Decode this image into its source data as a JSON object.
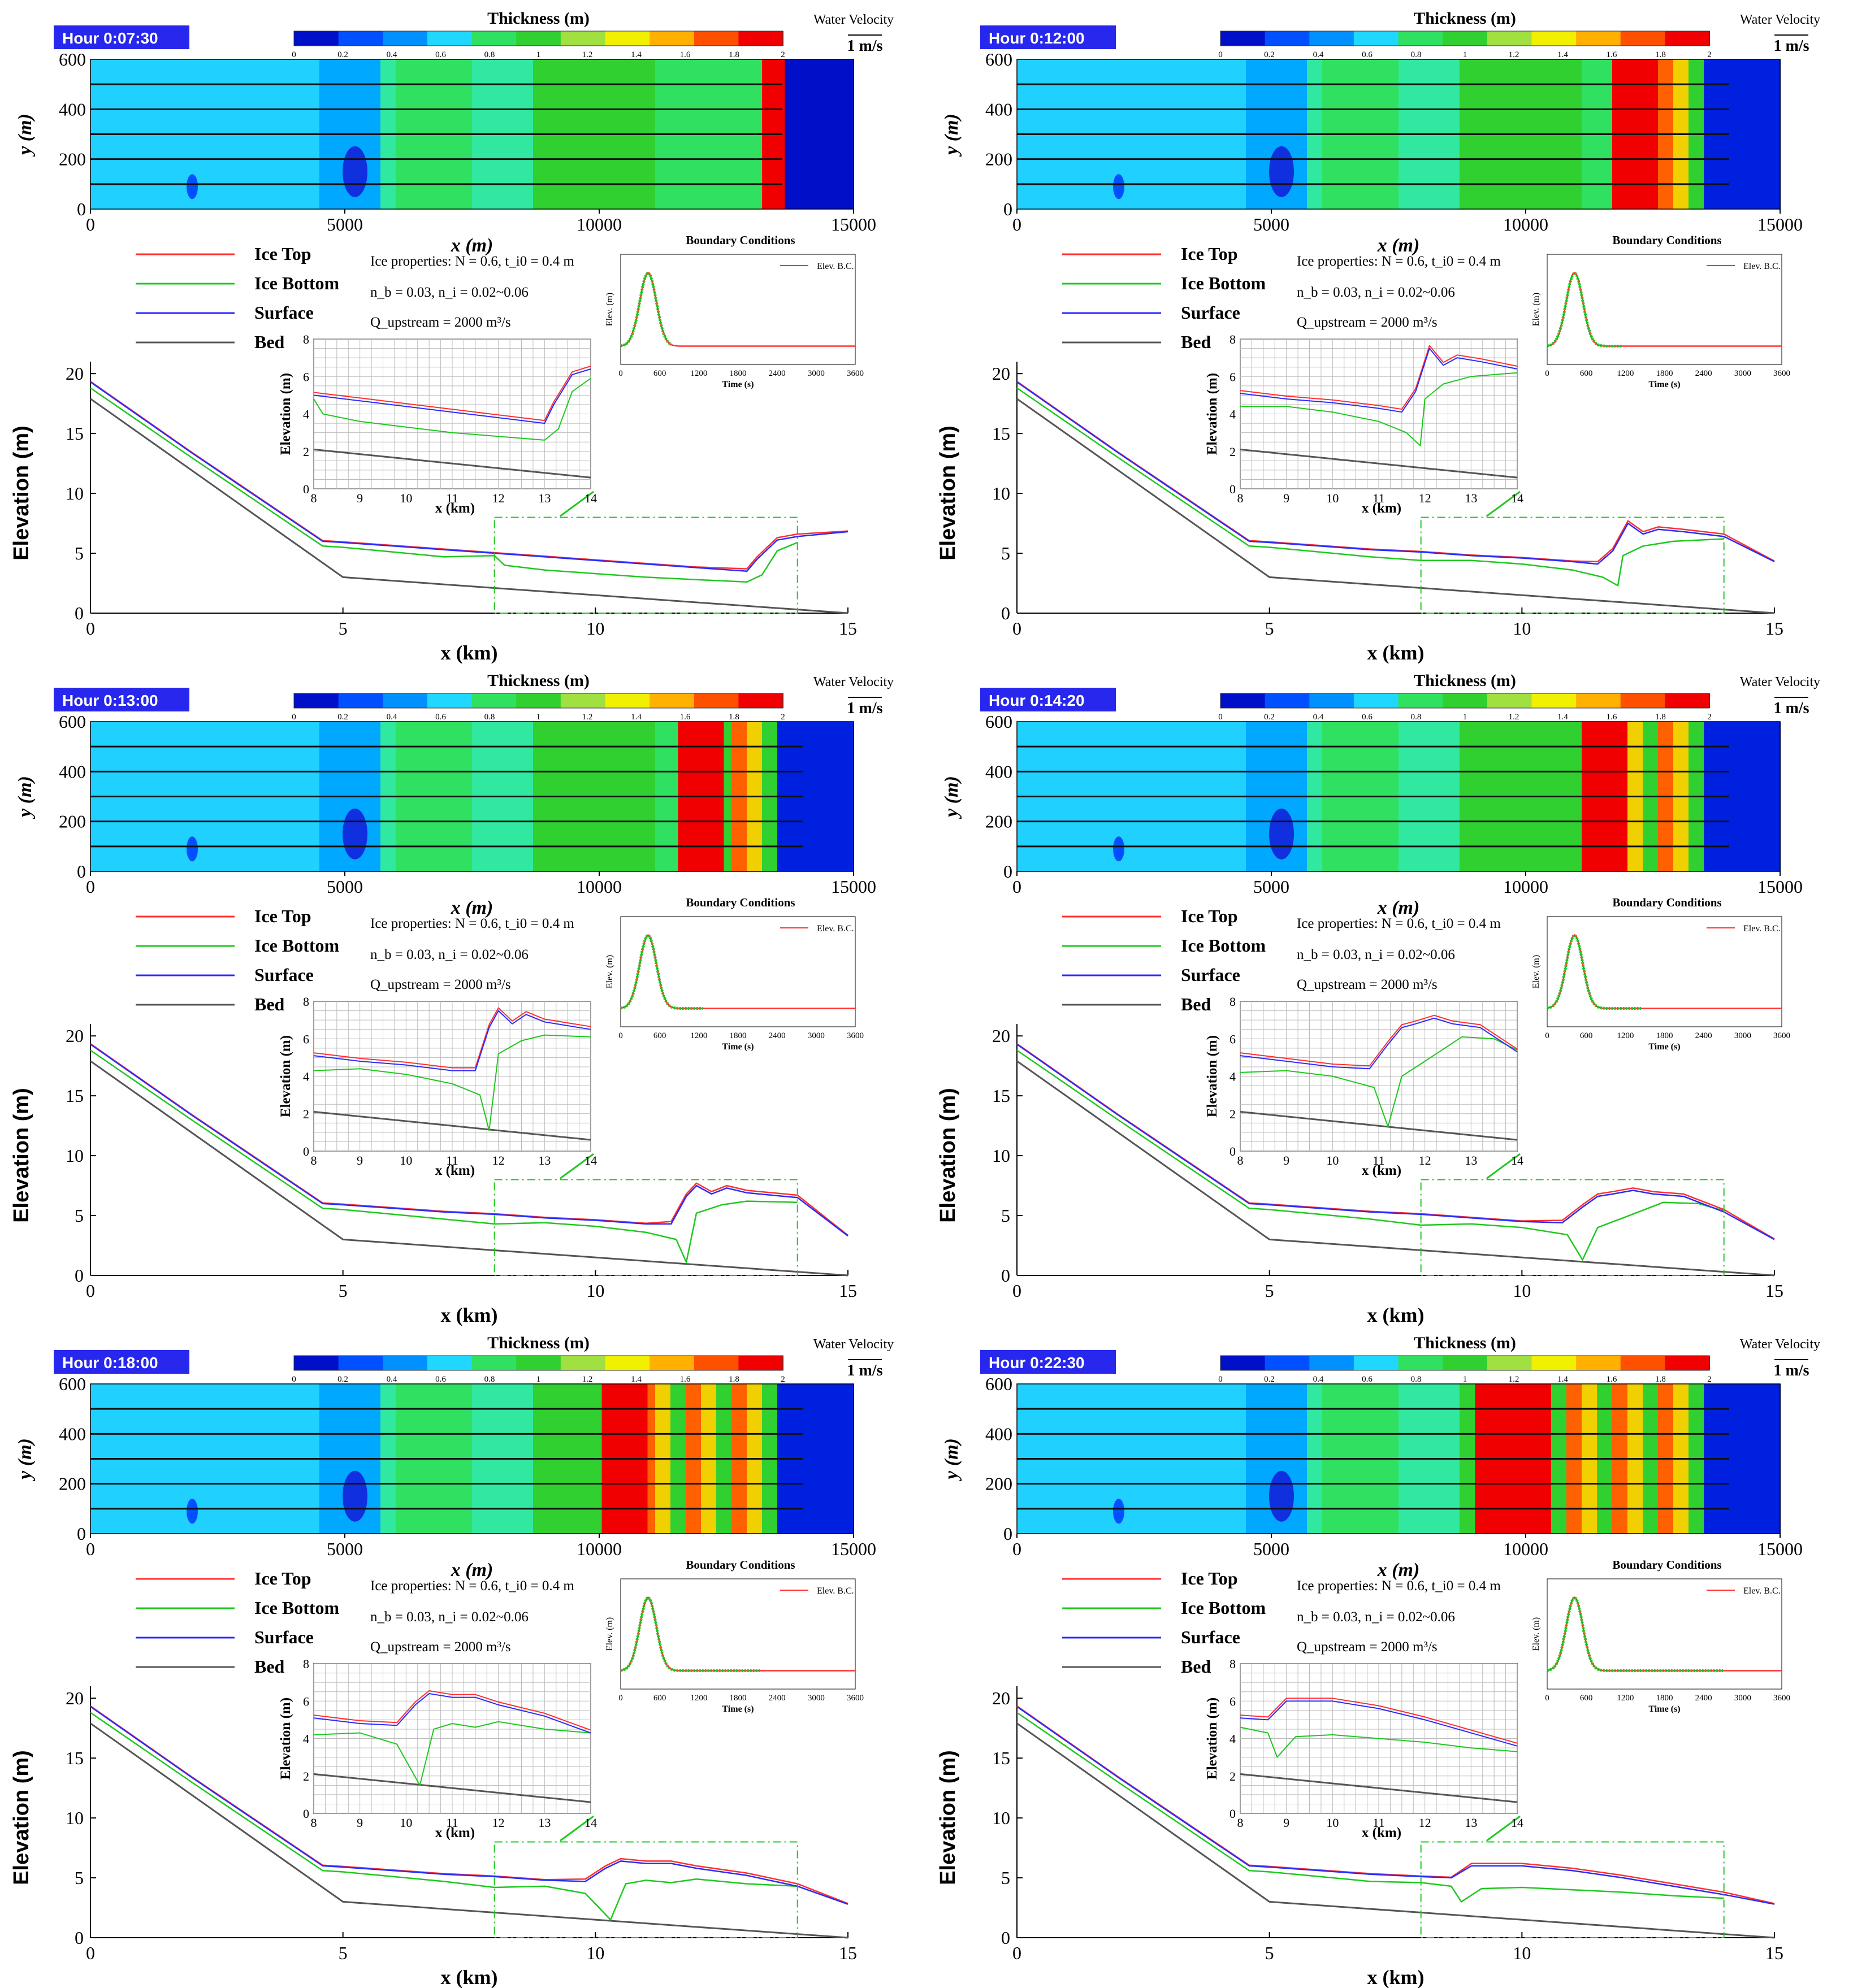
{
  "common": {
    "thickness_title": "Thickness (m)",
    "thickness_ticks": [
      "0",
      "0.2",
      "0.4",
      "0.6",
      "0.8",
      "1",
      "1.2",
      "1.4",
      "1.6",
      "1.8",
      "2"
    ],
    "velocity_title": "Water Velocity",
    "velocity_ref": "1 m/s",
    "map_x_label": "x (m)",
    "map_y_label": "y (m)",
    "map_x_ticks": [
      "0",
      "5000",
      "10000",
      "15000"
    ],
    "map_y_ticks": [
      "0",
      "200",
      "400",
      "600"
    ],
    "legend": [
      "Ice Top",
      "Ice Bottom",
      "Surface",
      "Bed"
    ],
    "props_line1": "Ice properties: N = 0.6, t_i0 = 0.4 m",
    "props_line2": "n_b = 0.03, n_i = 0.02~0.06",
    "props_line3": "Q_upstream = 2000 m³/s",
    "bc_title": "Boundary Conditions",
    "bc_legend": "Elev. B.C.",
    "bc_y_label": "Elev. (m)",
    "bc_x_label": "Time (s)",
    "bc_x_ticks": [
      "0",
      "600",
      "1200",
      "1800",
      "2400",
      "3000",
      "3600"
    ],
    "elev_y_label": "Elevation (m)",
    "elev_x_label": "x (km)",
    "elev_x_ticks": [
      "0",
      "5",
      "10",
      "15"
    ],
    "elev_y_ticks": [
      "0",
      "5",
      "10",
      "15",
      "20"
    ],
    "inset_x_ticks": [
      "8",
      "9",
      "10",
      "11",
      "12",
      "13",
      "14"
    ],
    "inset_y_ticks": [
      "0",
      "2",
      "4",
      "6",
      "8"
    ],
    "inset_y_label": "Elevation (m)",
    "inset_x_label": "x (km)"
  },
  "colors": {
    "ice_top": "#ff3030",
    "ice_bottom": "#1ec81e",
    "surface": "#2b2bff",
    "bed": "#555555",
    "hour_badge": "#2727ee",
    "thickness_scale": [
      "#0010c8",
      "#0050ff",
      "#0090ff",
      "#20d8ff",
      "#30e060",
      "#30d030",
      "#a0e040",
      "#f0f000",
      "#ffb000",
      "#ff5000",
      "#f00000"
    ]
  },
  "chart_data": [
    {
      "type": "line",
      "hour": "Hour   0:07:30",
      "ice_front_km": 13.6,
      "jam_start_km": 13.2,
      "bc_progress": 0.22,
      "surface": [
        [
          0,
          19.3
        ],
        [
          2,
          13.4
        ],
        [
          4.6,
          6.0
        ],
        [
          5,
          5.9
        ],
        [
          6,
          5.6
        ],
        [
          7,
          5.3
        ],
        [
          8,
          5.0
        ],
        [
          9,
          4.7
        ],
        [
          10,
          4.4
        ],
        [
          11,
          4.1
        ],
        [
          12,
          3.8
        ],
        [
          13,
          3.5
        ],
        [
          13.2,
          4.5
        ],
        [
          13.6,
          6.1
        ],
        [
          14,
          6.4
        ],
        [
          15,
          6.8
        ]
      ],
      "ice_bottom": [
        [
          0,
          18.8
        ],
        [
          2,
          13.0
        ],
        [
          4.6,
          5.6
        ],
        [
          5,
          5.5
        ],
        [
          6,
          5.1
        ],
        [
          7,
          4.7
        ],
        [
          8,
          4.8
        ],
        [
          8.2,
          4.0
        ],
        [
          9,
          3.6
        ],
        [
          10,
          3.3
        ],
        [
          11,
          3.0
        ],
        [
          12,
          2.8
        ],
        [
          13,
          2.6
        ],
        [
          13.3,
          3.2
        ],
        [
          13.6,
          5.2
        ],
        [
          14,
          5.9
        ]
      ],
      "bed": [
        [
          0,
          17.9
        ],
        [
          5,
          3.0
        ],
        [
          15,
          0.0
        ]
      ]
    },
    {
      "type": "line",
      "hour": "Hour   0:12:00",
      "ice_front_km": 14.0,
      "jam_start_km": 11.6,
      "bc_progress": 0.32,
      "surface": [
        [
          0,
          19.3
        ],
        [
          2,
          13.4
        ],
        [
          4.6,
          6.0
        ],
        [
          5,
          5.9
        ],
        [
          6,
          5.6
        ],
        [
          7,
          5.3
        ],
        [
          8,
          5.1
        ],
        [
          9,
          4.8
        ],
        [
          10,
          4.6
        ],
        [
          11,
          4.3
        ],
        [
          11.5,
          4.1
        ],
        [
          11.8,
          5.2
        ],
        [
          12.1,
          7.5
        ],
        [
          12.4,
          6.6
        ],
        [
          12.7,
          7.0
        ],
        [
          13.2,
          6.8
        ],
        [
          14,
          6.4
        ],
        [
          15,
          4.3
        ]
      ],
      "ice_bottom": [
        [
          0,
          18.8
        ],
        [
          2,
          13.0
        ],
        [
          4.6,
          5.6
        ],
        [
          5,
          5.5
        ],
        [
          6,
          5.1
        ],
        [
          7,
          4.7
        ],
        [
          8,
          4.4
        ],
        [
          9,
          4.4
        ],
        [
          10,
          4.1
        ],
        [
          11,
          3.6
        ],
        [
          11.6,
          3.0
        ],
        [
          11.9,
          2.3
        ],
        [
          12.0,
          4.8
        ],
        [
          12.4,
          5.6
        ],
        [
          13,
          6.0
        ],
        [
          14,
          6.2
        ]
      ],
      "bed": [
        [
          0,
          17.9
        ],
        [
          5,
          3.0
        ],
        [
          15,
          0.0
        ]
      ]
    },
    {
      "type": "line",
      "hour": "Hour   0:13:00",
      "ice_front_km": 14.0,
      "jam_start_km": 11.5,
      "bc_progress": 0.35,
      "surface": [
        [
          0,
          19.3
        ],
        [
          2,
          13.4
        ],
        [
          4.6,
          6.0
        ],
        [
          5,
          5.9
        ],
        [
          6,
          5.6
        ],
        [
          7,
          5.3
        ],
        [
          8,
          5.1
        ],
        [
          9,
          4.8
        ],
        [
          10,
          4.6
        ],
        [
          11,
          4.3
        ],
        [
          11.5,
          4.3
        ],
        [
          11.8,
          6.6
        ],
        [
          12.0,
          7.5
        ],
        [
          12.3,
          6.8
        ],
        [
          12.6,
          7.3
        ],
        [
          13,
          6.9
        ],
        [
          14,
          6.5
        ],
        [
          15,
          3.3
        ]
      ],
      "ice_bottom": [
        [
          0,
          18.8
        ],
        [
          2,
          13.0
        ],
        [
          4.6,
          5.6
        ],
        [
          5,
          5.5
        ],
        [
          6,
          5.1
        ],
        [
          7,
          4.7
        ],
        [
          8,
          4.3
        ],
        [
          9,
          4.4
        ],
        [
          10,
          4.1
        ],
        [
          11,
          3.6
        ],
        [
          11.6,
          3.0
        ],
        [
          11.8,
          1.1
        ],
        [
          12.0,
          5.2
        ],
        [
          12.5,
          5.9
        ],
        [
          13,
          6.2
        ],
        [
          14,
          6.1
        ]
      ],
      "bed": [
        [
          0,
          17.9
        ],
        [
          5,
          3.0
        ],
        [
          15,
          0.0
        ]
      ]
    },
    {
      "type": "line",
      "hour": "Hour   0:14:20",
      "ice_front_km": 14.0,
      "jam_start_km": 11.0,
      "bc_progress": 0.4,
      "surface": [
        [
          0,
          19.3
        ],
        [
          2,
          13.4
        ],
        [
          4.6,
          6.0
        ],
        [
          5,
          5.9
        ],
        [
          6,
          5.6
        ],
        [
          7,
          5.3
        ],
        [
          8,
          5.1
        ],
        [
          9,
          4.8
        ],
        [
          10,
          4.5
        ],
        [
          10.8,
          4.4
        ],
        [
          11.2,
          5.7
        ],
        [
          11.5,
          6.6
        ],
        [
          11.8,
          6.8
        ],
        [
          12.2,
          7.1
        ],
        [
          12.6,
          6.8
        ],
        [
          13.2,
          6.6
        ],
        [
          14,
          5.3
        ],
        [
          15,
          3.0
        ]
      ],
      "ice_bottom": [
        [
          0,
          18.8
        ],
        [
          2,
          13.0
        ],
        [
          4.6,
          5.6
        ],
        [
          5,
          5.5
        ],
        [
          6,
          5.1
        ],
        [
          7,
          4.7
        ],
        [
          8,
          4.2
        ],
        [
          9,
          4.3
        ],
        [
          10,
          4.0
        ],
        [
          10.9,
          3.4
        ],
        [
          11.2,
          1.3
        ],
        [
          11.5,
          4.0
        ],
        [
          12,
          4.8
        ],
        [
          12.8,
          6.1
        ],
        [
          13.5,
          6.0
        ],
        [
          14,
          5.4
        ]
      ],
      "bed": [
        [
          0,
          17.9
        ],
        [
          5,
          3.0
        ],
        [
          15,
          0.0
        ]
      ]
    },
    {
      "type": "line",
      "hour": "Hour   0:18:00",
      "ice_front_km": 14.0,
      "jam_start_km": 10.0,
      "bc_progress": 0.6,
      "surface": [
        [
          0,
          19.3
        ],
        [
          2,
          13.4
        ],
        [
          4.6,
          6.0
        ],
        [
          5,
          5.9
        ],
        [
          6,
          5.6
        ],
        [
          7,
          5.3
        ],
        [
          8,
          5.1
        ],
        [
          9,
          4.8
        ],
        [
          9.8,
          4.7
        ],
        [
          10.2,
          5.8
        ],
        [
          10.5,
          6.4
        ],
        [
          11,
          6.2
        ],
        [
          11.5,
          6.2
        ],
        [
          12,
          5.8
        ],
        [
          13,
          5.2
        ],
        [
          14,
          4.3
        ],
        [
          15,
          2.8
        ]
      ],
      "ice_bottom": [
        [
          0,
          18.8
        ],
        [
          2,
          13.0
        ],
        [
          4.6,
          5.6
        ],
        [
          5,
          5.5
        ],
        [
          6,
          5.1
        ],
        [
          7,
          4.7
        ],
        [
          8,
          4.2
        ],
        [
          9,
          4.3
        ],
        [
          9.8,
          3.7
        ],
        [
          10.3,
          1.5
        ],
        [
          10.6,
          4.5
        ],
        [
          11,
          4.8
        ],
        [
          11.5,
          4.6
        ],
        [
          12,
          4.9
        ],
        [
          13,
          4.5
        ],
        [
          14,
          4.3
        ]
      ],
      "bed": [
        [
          0,
          17.9
        ],
        [
          5,
          3.0
        ],
        [
          15,
          0.0
        ]
      ]
    },
    {
      "type": "line",
      "hour": "Hour   0:22:30",
      "ice_front_km": 14.0,
      "jam_start_km": 8.9,
      "bc_progress": 0.75,
      "surface": [
        [
          0,
          19.3
        ],
        [
          2,
          13.4
        ],
        [
          4.6,
          6.0
        ],
        [
          5,
          5.9
        ],
        [
          6,
          5.6
        ],
        [
          7,
          5.3
        ],
        [
          8,
          5.1
        ],
        [
          8.6,
          5.0
        ],
        [
          9,
          6.0
        ],
        [
          10,
          6.0
        ],
        [
          11,
          5.6
        ],
        [
          12,
          5.0
        ],
        [
          13,
          4.3
        ],
        [
          14,
          3.6
        ],
        [
          15,
          2.8
        ]
      ],
      "ice_bottom": [
        [
          0,
          18.8
        ],
        [
          2,
          13.0
        ],
        [
          4.6,
          5.6
        ],
        [
          5,
          5.5
        ],
        [
          6,
          5.1
        ],
        [
          7,
          4.7
        ],
        [
          8,
          4.6
        ],
        [
          8.6,
          4.3
        ],
        [
          8.8,
          3.0
        ],
        [
          9.2,
          4.1
        ],
        [
          10,
          4.2
        ],
        [
          11,
          4.0
        ],
        [
          12,
          3.8
        ],
        [
          13,
          3.5
        ],
        [
          14,
          3.3
        ]
      ],
      "bed": [
        [
          0,
          17.9
        ],
        [
          5,
          3.0
        ],
        [
          15,
          0.0
        ]
      ]
    }
  ]
}
